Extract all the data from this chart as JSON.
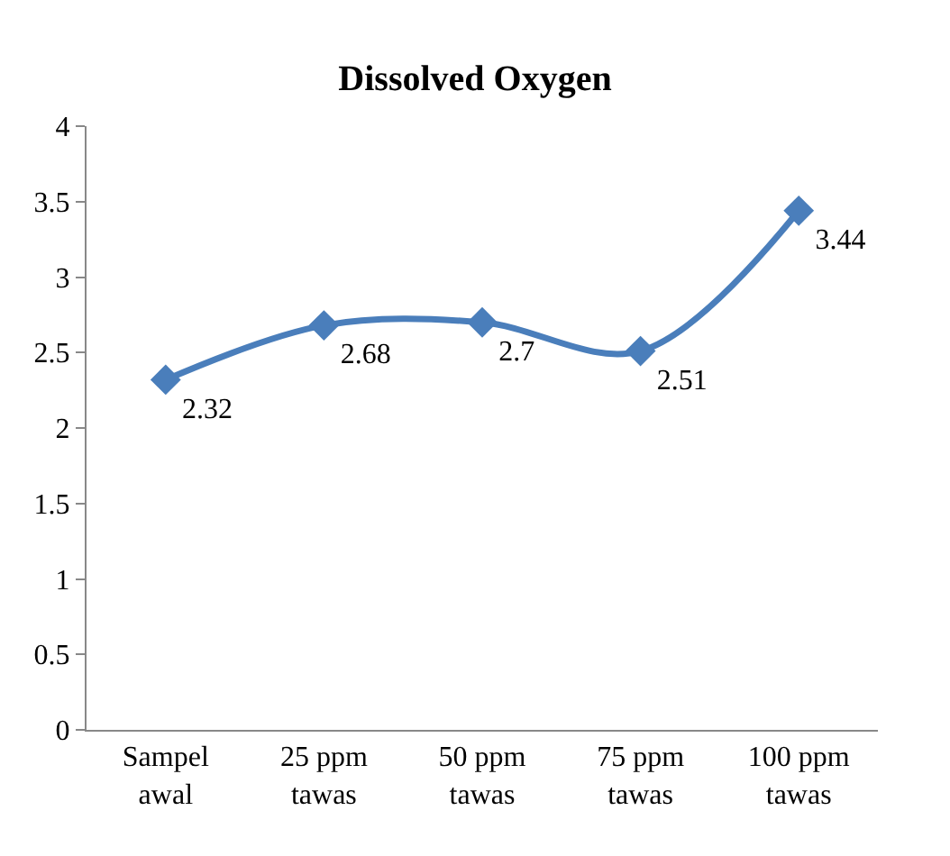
{
  "chart_data": {
    "type": "line",
    "title": "Dissolved Oxygen",
    "categories": [
      "Sampel awal",
      "25 ppm tawas",
      "50 ppm tawas",
      "75 ppm tawas",
      "100 ppm tawas"
    ],
    "series": [
      {
        "color": "#4a7ebb",
        "values": [
          2.32,
          2.68,
          2.7,
          2.51,
          3.44
        ]
      }
    ],
    "ylim": [
      0,
      4
    ],
    "yticks": [
      0,
      0.5,
      1,
      1.5,
      2,
      2.5,
      3,
      3.5,
      4
    ],
    "legend": false,
    "marker": "diamond",
    "line_style": "solid",
    "data_labels": true
  }
}
